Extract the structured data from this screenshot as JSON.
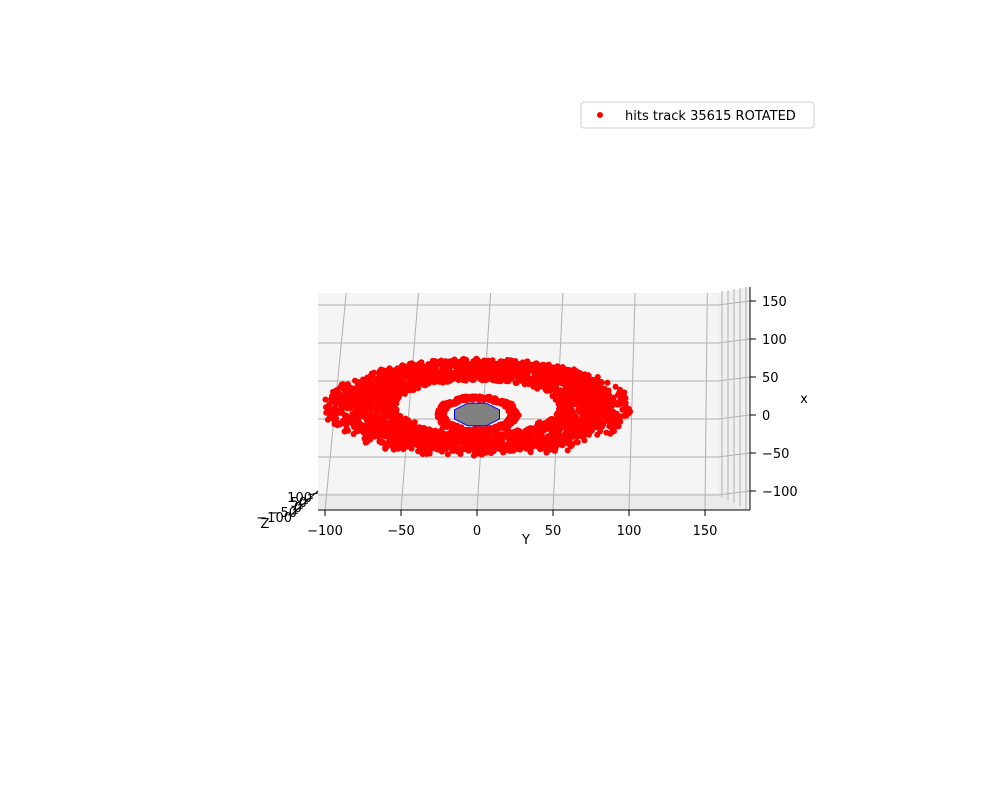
{
  "chart_data": {
    "type": "scatter",
    "projection": "3d",
    "title": "",
    "xlabel": "Y",
    "ylabel": "x",
    "zlabel": "Z",
    "xlim": [
      -110,
      180
    ],
    "ylim": [
      -120,
      170
    ],
    "x_ticks": [
      "−100",
      "−50",
      "0",
      "50",
      "100",
      "150"
    ],
    "y_ticks": [
      "−100",
      "−50",
      "0",
      "50",
      "100",
      "150"
    ],
    "z_ticks": [
      "100",
      "50",
      "0",
      "−50",
      "−100"
    ],
    "z_tick_values": [
      100,
      50,
      0,
      -50,
      -100
    ],
    "grid": true,
    "legend_position": "upper right",
    "series": [
      {
        "name": "hits track 35615 ROTATED",
        "color": "#ff0000",
        "marker": "circle",
        "description_structure": {
          "inner_ring_radius": 22,
          "middle_ring_radius": 55,
          "outer_ring_radius": 80,
          "ring_center": [
            0,
            18
          ]
        }
      }
    ],
    "center_patch_color": "#808080",
    "center_line_color": "#0000ff",
    "pane_color": "#f5f5f5",
    "grid_color": "#b0b0b0"
  }
}
